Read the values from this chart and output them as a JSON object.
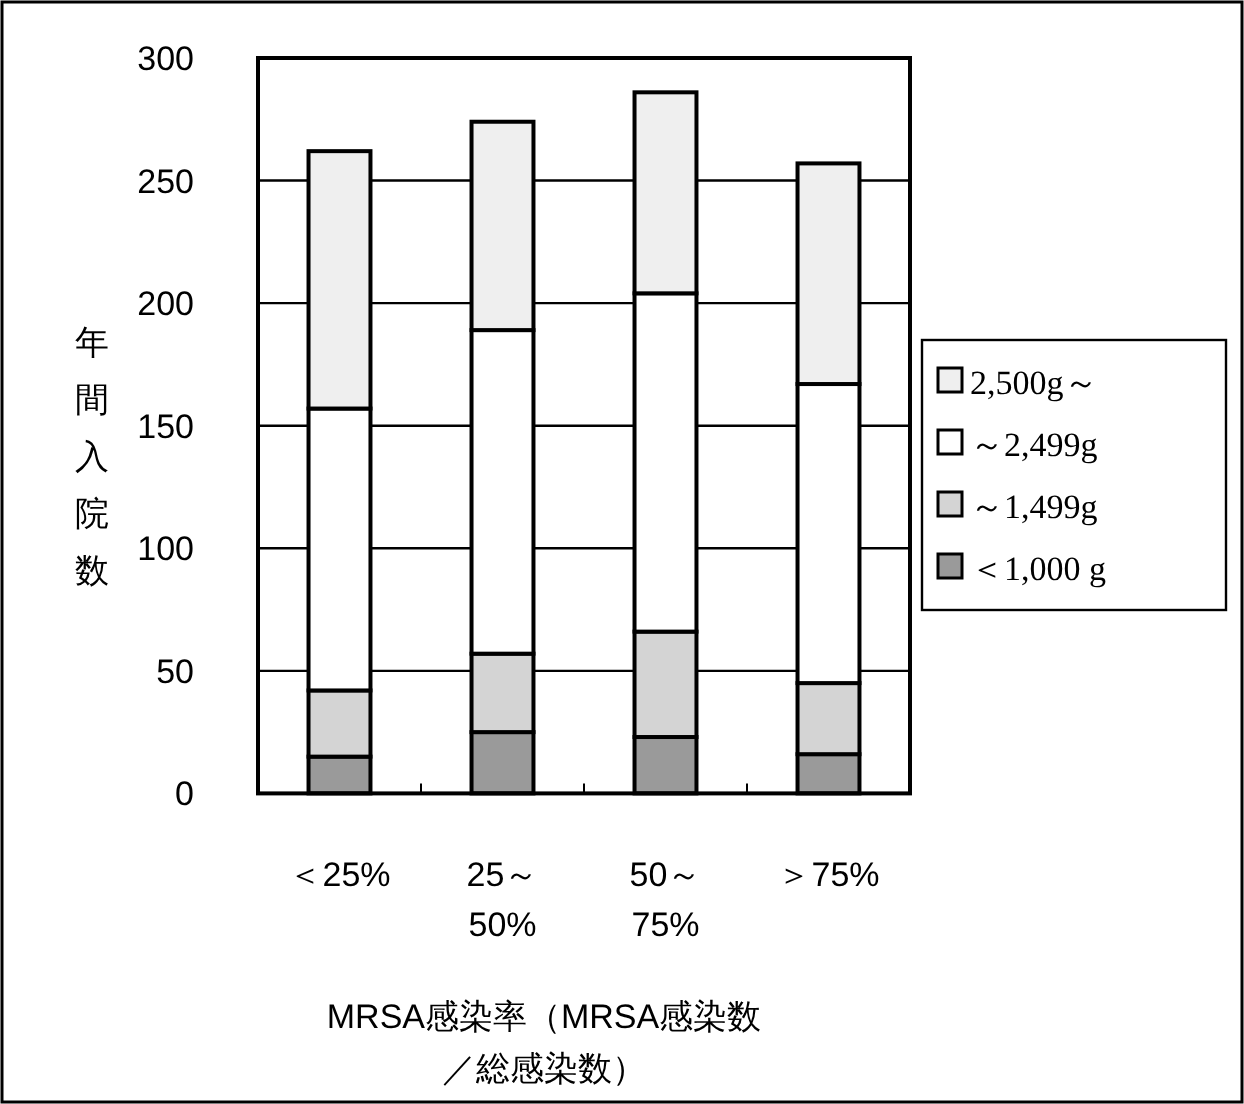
{
  "chart_data": {
    "type": "bar",
    "stacked": true,
    "categories": [
      "＜25%",
      "25～50%",
      "50～75%",
      "＞75%"
    ],
    "xlabel": "MRSA感染率（MRSA感染数／総感染数）",
    "ylabel": "年間入院数",
    "series": [
      {
        "name": "＜1,000 g",
        "color": "#9a9a9a",
        "values": [
          15,
          25,
          23,
          16
        ]
      },
      {
        "name": "～1,499g",
        "color": "#d4d4d4",
        "values": [
          27,
          32,
          43,
          29
        ]
      },
      {
        "name": "～2,499g",
        "color": "#ffffff",
        "values": [
          115,
          132,
          138,
          122
        ]
      },
      {
        "name": "2,500g～",
        "color": "#efefef",
        "values": [
          105,
          85,
          82,
          90
        ]
      }
    ],
    "ylim": [
      0,
      300
    ],
    "yticks": [
      0,
      50,
      100,
      150,
      200,
      250,
      300
    ],
    "grid": "y",
    "legend": "right"
  }
}
